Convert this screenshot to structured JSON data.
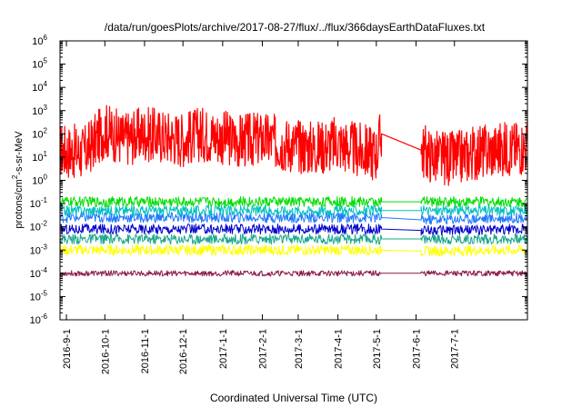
{
  "chart_data": {
    "type": "line",
    "title": "/data/run/goesPlots/archive/2017-08-27/flux/../flux/366daysEarthDataFluxes.txt",
    "xlabel": "Coordinated Universal Time (UTC)",
    "ylabel": {
      "prefix": "protons/cm",
      "sup": "2",
      "suffix": "-s-sr-MeV"
    },
    "yscale": "log",
    "ylim": [
      1e-06,
      1000000.0
    ],
    "xlim": [
      "2016-08-27",
      "2017-08-27"
    ],
    "grid": false,
    "legend": "none",
    "y_ticks": [
      {
        "value": 1e-06,
        "base": "10",
        "exp": "-6"
      },
      {
        "value": 1e-05,
        "base": "10",
        "exp": "-5"
      },
      {
        "value": 0.0001,
        "base": "10",
        "exp": "-4"
      },
      {
        "value": 0.001,
        "base": "10",
        "exp": "-3"
      },
      {
        "value": 0.01,
        "base": "10",
        "exp": "-2"
      },
      {
        "value": 0.1,
        "base": "10",
        "exp": "-1"
      },
      {
        "value": 1.0,
        "base": "10",
        "exp": "0"
      },
      {
        "value": 10.0,
        "base": "10",
        "exp": "1"
      },
      {
        "value": 100.0,
        "base": "10",
        "exp": "2"
      },
      {
        "value": 1000.0,
        "base": "10",
        "exp": "3"
      },
      {
        "value": 10000.0,
        "base": "10",
        "exp": "4"
      },
      {
        "value": 100000.0,
        "base": "10",
        "exp": "5"
      },
      {
        "value": 1000000.0,
        "base": "10",
        "exp": "6"
      }
    ],
    "x_ticks": [
      {
        "date": "2016-09-01",
        "label": "2016-9-1"
      },
      {
        "date": "2016-10-01",
        "label": "2016-10-1"
      },
      {
        "date": "2016-11-01",
        "label": "2016-11-1"
      },
      {
        "date": "2016-12-01",
        "label": "2016-12-1"
      },
      {
        "date": "2017-01-01",
        "label": "2017-1-1"
      },
      {
        "date": "2017-02-01",
        "label": "2017-2-1"
      },
      {
        "date": "2017-03-01",
        "label": "2017-3-1"
      },
      {
        "date": "2017-04-01",
        "label": "2017-4-1"
      },
      {
        "date": "2017-05-01",
        "label": "2017-5-1"
      },
      {
        "date": "2017-06-01",
        "label": "2017-6-1"
      },
      {
        "date": "2017-07-01",
        "label": "2017-7-1"
      }
    ],
    "data_gap": [
      "2017-05-05",
      "2017-06-05"
    ],
    "series": [
      {
        "color": "#ff0000",
        "values": {
          "2016-08-27": 20,
          "2016-09-15": 15,
          "2016-10-01": 150,
          "2016-10-15": 60,
          "2016-11-01": 100,
          "2016-11-15": 80,
          "2016-12-01": 60,
          "2016-12-15": 100,
          "2017-01-01": 70,
          "2017-01-15": 50,
          "2017-02-01": 60,
          "2017-02-15": 40,
          "2017-03-01": 30,
          "2017-03-15": 25,
          "2017-04-01": 40,
          "2017-04-15": 20,
          "2017-05-01": 15,
          "2017-05-05": 100,
          "2017-06-05": 20,
          "2017-06-15": 10,
          "2017-07-01": 8,
          "2017-07-15": 15,
          "2017-08-01": 20,
          "2017-08-27": 30
        }
      },
      {
        "color": "#00dd00",
        "values": {
          "2016-08-27": 0.12,
          "2017-05-05": 0.12,
          "2017-06-05": 0.12,
          "2017-08-27": 0.12
        }
      },
      {
        "color": "#00c0c0",
        "values": {
          "2016-08-27": 0.05,
          "2017-05-05": 0.05,
          "2017-06-05": 0.05,
          "2017-08-27": 0.05
        }
      },
      {
        "color": "#1e78ff",
        "values": {
          "2016-08-27": 0.025,
          "2017-05-05": 0.025,
          "2017-06-05": 0.02,
          "2017-08-27": 0.025
        }
      },
      {
        "color": "#0000cc",
        "values": {
          "2016-08-27": 0.008,
          "2017-05-05": 0.008,
          "2017-06-05": 0.007,
          "2017-08-27": 0.008
        }
      },
      {
        "color": "#1aa88c",
        "values": {
          "2016-08-27": 0.003,
          "2017-05-05": 0.003,
          "2017-06-05": 0.003,
          "2017-08-27": 0.003
        }
      },
      {
        "color": "#ffff00",
        "values": {
          "2016-08-27": 0.001,
          "2017-05-05": 0.001,
          "2017-06-05": 0.0009,
          "2017-08-27": 0.001
        }
      },
      {
        "color": "#8b1a4a",
        "values": {
          "2016-08-27": 0.0001,
          "2017-05-05": 0.0001,
          "2017-06-05": 0.0001,
          "2017-08-27": 0.0001
        }
      }
    ]
  }
}
